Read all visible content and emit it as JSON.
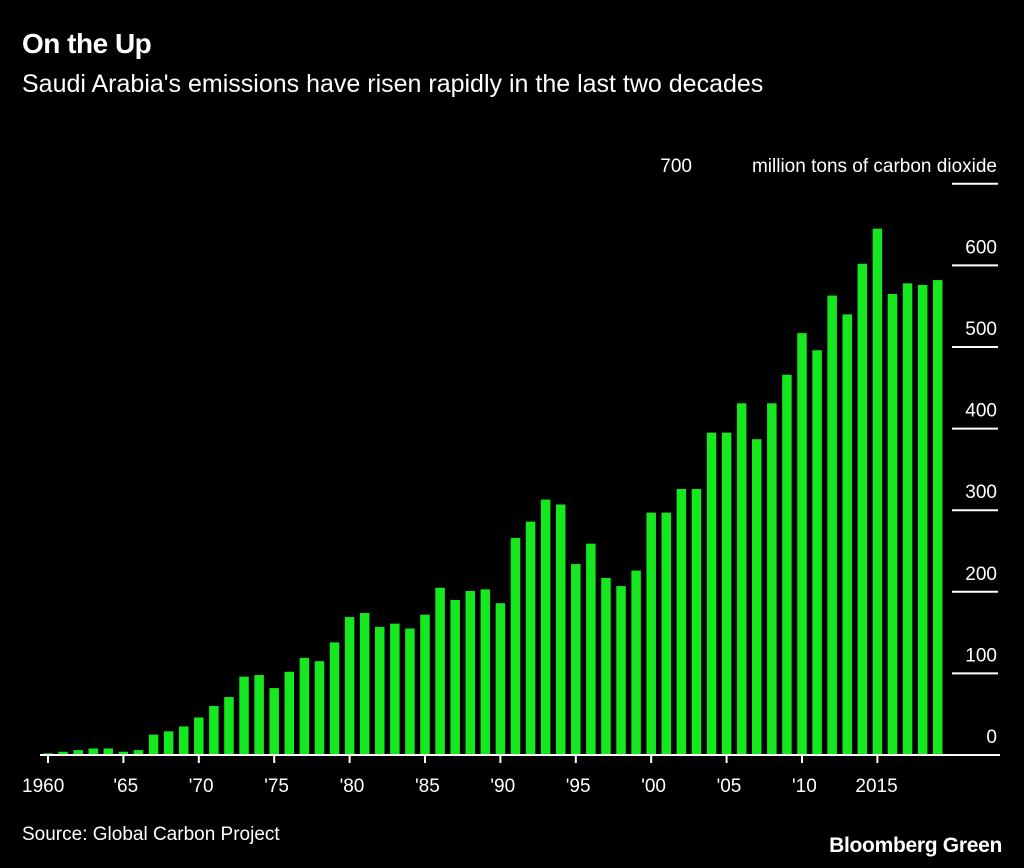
{
  "chart_data": {
    "type": "bar",
    "title": "On the Up",
    "subtitle": "Saudi Arabia's emissions have risen rapidly in the last two decades",
    "ylabel": "million tons of carbon dioxide",
    "xlabel": "",
    "ylim": [
      0,
      700
    ],
    "yticks": [
      0,
      100,
      200,
      300,
      400,
      500,
      600,
      700
    ],
    "ytick_labels": [
      "0",
      "100",
      "200",
      "300",
      "400",
      "500",
      "600",
      "700"
    ],
    "xtick_years": [
      1960,
      1965,
      1970,
      1975,
      1980,
      1985,
      1990,
      1995,
      2000,
      2005,
      2010,
      2015
    ],
    "xtick_labels": [
      "1960",
      "'65",
      "'70",
      "'75",
      "'80",
      "'85",
      "'90",
      "'95",
      "'00",
      "'05",
      "'10",
      "2015"
    ],
    "grid": false,
    "bar_color": "#16e81f",
    "categories": [
      1960,
      1961,
      1962,
      1963,
      1964,
      1965,
      1966,
      1967,
      1968,
      1969,
      1970,
      1971,
      1972,
      1973,
      1974,
      1975,
      1976,
      1977,
      1978,
      1979,
      1980,
      1981,
      1982,
      1983,
      1984,
      1985,
      1986,
      1987,
      1988,
      1989,
      1990,
      1991,
      1992,
      1993,
      1994,
      1995,
      1996,
      1997,
      1998,
      1999,
      2000,
      2001,
      2002,
      2003,
      2004,
      2005,
      2006,
      2007,
      2008,
      2009,
      2010,
      2011,
      2012,
      2013,
      2014,
      2015,
      2016,
      2017,
      2018,
      2019
    ],
    "values": [
      2,
      4,
      6,
      8,
      8,
      4,
      6,
      25,
      29,
      35,
      46,
      60,
      71,
      96,
      98,
      82,
      102,
      119,
      115,
      138,
      169,
      174,
      157,
      161,
      155,
      172,
      205,
      190,
      201,
      203,
      186,
      266,
      286,
      313,
      307,
      234,
      259,
      217,
      207,
      226,
      297,
      297,
      326,
      326,
      395,
      395,
      431,
      387,
      431,
      466,
      517,
      496,
      563,
      540,
      602,
      645,
      565,
      578,
      576,
      582
    ]
  },
  "source": "Source: Global Carbon Project",
  "brand": "Bloomberg Green"
}
